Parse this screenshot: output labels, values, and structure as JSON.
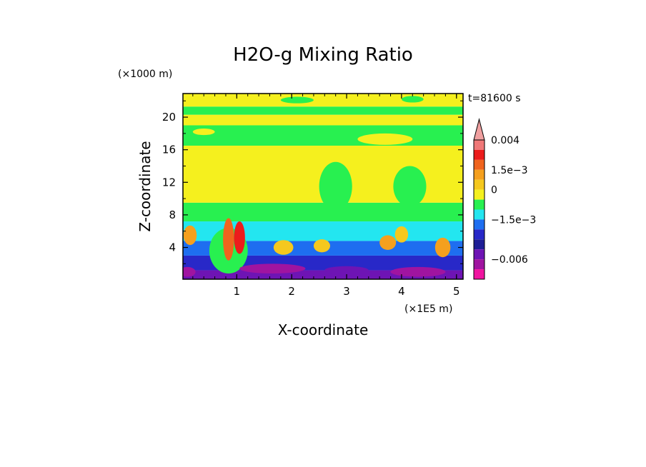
{
  "chart_data": {
    "type": "heatmap",
    "title": "H2O-g Mixing Ratio",
    "time_label": "t=81600 s",
    "xlabel": "X-coordinate",
    "ylabel": "Z-coordinate",
    "x_unit": "(×1E5 m)",
    "y_unit": "(×1000 m)",
    "xlim": [
      0.02,
      5.12
    ],
    "ylim": [
      0.1,
      22.9
    ],
    "x_ticks": [
      1,
      2,
      3,
      4,
      5
    ],
    "y_ticks": [
      4,
      8,
      12,
      16,
      20
    ],
    "colorbar": {
      "levels": [
        {
          "color": "#f0a0a0"
        },
        {
          "color": "#f07878"
        },
        {
          "color": "#ec1c1c"
        },
        {
          "color": "#f0641e"
        },
        {
          "color": "#f5a01e"
        },
        {
          "color": "#f5c81e"
        },
        {
          "color": "#f5f01e"
        },
        {
          "color": "#28f050"
        },
        {
          "color": "#23e6f0"
        },
        {
          "color": "#1e6ef0"
        },
        {
          "color": "#2828c8"
        },
        {
          "color": "#1e1e96"
        },
        {
          "color": "#6e14b4"
        },
        {
          "color": "#a014a0"
        },
        {
          "color": "#f014a0"
        }
      ],
      "labels": [
        {
          "text": "0.004",
          "level_index": 1
        },
        {
          "text": "1.5e−3",
          "level_index": 4
        },
        {
          "text": "0",
          "level_index": 6
        },
        {
          "text": "−1.5e−3",
          "level_index": 9
        },
        {
          "text": "−0.006",
          "level_index": 13
        }
      ]
    },
    "field_bands": [
      {
        "z": [
          0.1,
          1.2
        ],
        "level": "#6e14b4"
      },
      {
        "z": [
          1.2,
          3.0
        ],
        "level": "#2828c8"
      },
      {
        "z": [
          3.0,
          4.8
        ],
        "level": "#1e6ef0"
      },
      {
        "z": [
          4.8,
          7.2
        ],
        "level": "#23e6f0"
      },
      {
        "z": [
          7.2,
          9.5
        ],
        "level": "#28f050"
      },
      {
        "z": [
          9.5,
          16.5
        ],
        "level": "#f5f01e"
      },
      {
        "z": [
          16.5,
          19.0
        ],
        "level": "#28f050"
      },
      {
        "z": [
          19.0,
          20.3
        ],
        "level": "#f5f01e"
      },
      {
        "z": [
          20.3,
          21.3
        ],
        "level": "#28f050"
      },
      {
        "z": [
          21.3,
          22.9
        ],
        "level": "#f5f01e"
      }
    ],
    "field_features": [
      {
        "x": 0.85,
        "z": 3.6,
        "rx": 0.35,
        "rz": 2.8,
        "level": "#28f050"
      },
      {
        "x": 1.05,
        "z": 5.2,
        "rx": 0.1,
        "rz": 2.0,
        "level": "#ec1c1c"
      },
      {
        "x": 0.85,
        "z": 5.0,
        "rx": 0.1,
        "rz": 2.6,
        "level": "#f0641e"
      },
      {
        "x": 0.15,
        "z": 5.5,
        "rx": 0.12,
        "rz": 1.2,
        "level": "#f5a01e"
      },
      {
        "x": 1.85,
        "z": 4.0,
        "rx": 0.18,
        "rz": 0.9,
        "level": "#f5c81e"
      },
      {
        "x": 2.55,
        "z": 4.2,
        "rx": 0.15,
        "rz": 0.8,
        "level": "#f5c81e"
      },
      {
        "x": 3.75,
        "z": 4.6,
        "rx": 0.15,
        "rz": 0.9,
        "level": "#f5a01e"
      },
      {
        "x": 4.0,
        "z": 5.6,
        "rx": 0.12,
        "rz": 1.0,
        "level": "#f5c81e"
      },
      {
        "x": 4.75,
        "z": 4.0,
        "rx": 0.14,
        "rz": 1.2,
        "level": "#f5a01e"
      },
      {
        "x": 1.65,
        "z": 1.4,
        "rx": 0.6,
        "rz": 0.6,
        "level": "#a014a0"
      },
      {
        "x": 4.3,
        "z": 1.0,
        "rx": 0.5,
        "rz": 0.6,
        "level": "#a014a0"
      },
      {
        "x": 0.1,
        "z": 1.0,
        "rx": 0.15,
        "rz": 0.6,
        "level": "#a014a0"
      },
      {
        "x": 3.0,
        "z": 1.2,
        "rx": 0.4,
        "rz": 0.5,
        "level": "#6e14b4"
      },
      {
        "x": 2.8,
        "z": 11.5,
        "rx": 0.3,
        "rz": 3.0,
        "level": "#28f050"
      },
      {
        "x": 4.15,
        "z": 11.5,
        "rx": 0.3,
        "rz": 2.5,
        "level": "#28f050"
      },
      {
        "x": 3.7,
        "z": 17.3,
        "rx": 0.5,
        "rz": 0.7,
        "level": "#f5f01e"
      },
      {
        "x": 0.4,
        "z": 18.2,
        "rx": 0.2,
        "rz": 0.4,
        "level": "#f5f01e"
      },
      {
        "x": 2.1,
        "z": 22.1,
        "rx": 0.3,
        "rz": 0.4,
        "level": "#28f050"
      },
      {
        "x": 4.2,
        "z": 22.2,
        "rx": 0.2,
        "rz": 0.4,
        "level": "#28f050"
      }
    ]
  }
}
